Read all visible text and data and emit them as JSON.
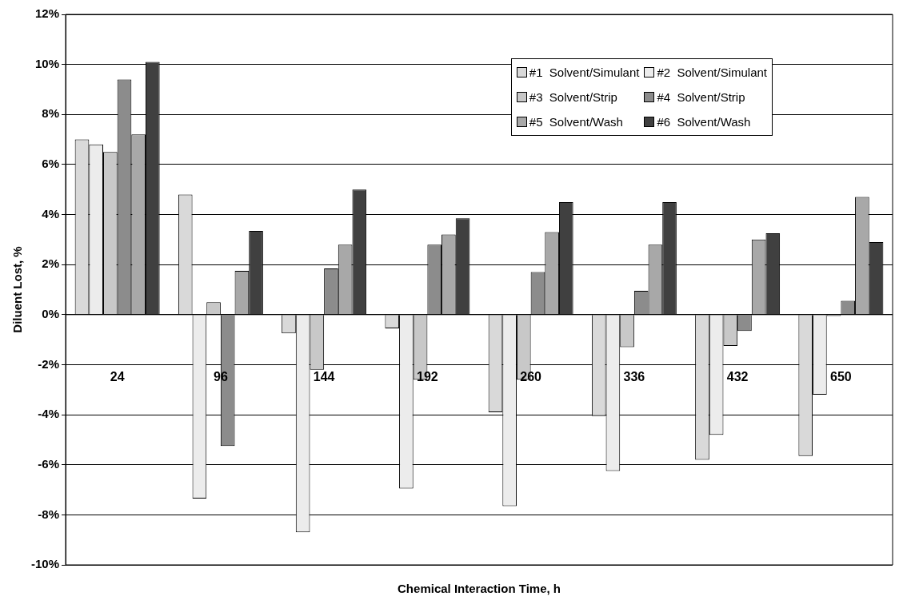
{
  "chart_data": {
    "type": "bar",
    "xlabel": "Chemical Interaction Time, h",
    "ylabel": "Diluent Lost, %",
    "categories": [
      "24",
      "96",
      "144",
      "192",
      "260",
      "336",
      "432",
      "650"
    ],
    "series": [
      {
        "name": "#1  Solvent/Simulant",
        "color": "#d9d9d9",
        "values": [
          7.0,
          4.8,
          -0.75,
          -0.55,
          -3.9,
          -4.05,
          -5.8,
          -5.65
        ]
      },
      {
        "name": "#2  Solvent/Simulant",
        "color": "#ececec",
        "values": [
          6.8,
          -7.35,
          -8.7,
          -6.95,
          -7.65,
          -6.25,
          -4.8,
          -3.2
        ]
      },
      {
        "name": "#3  Solvent/Strip",
        "color": "#c8c8c8",
        "values": [
          6.5,
          0.5,
          -2.2,
          -2.6,
          -2.6,
          -1.3,
          -1.25,
          -0.05
        ]
      },
      {
        "name": "#4  Solvent/Strip",
        "color": "#8c8c8c",
        "values": [
          9.4,
          -5.25,
          1.85,
          2.8,
          1.7,
          0.95,
          -0.65,
          0.55
        ]
      },
      {
        "name": "#5  Solvent/Wash",
        "color": "#a8a8a8",
        "values": [
          7.2,
          1.75,
          2.8,
          3.2,
          3.3,
          2.8,
          3.0,
          4.7
        ]
      },
      {
        "name": "#6  Solvent/Wash",
        "color": "#404040",
        "values": [
          10.1,
          3.35,
          5.0,
          3.85,
          4.5,
          4.5,
          3.25,
          2.9
        ]
      }
    ],
    "ylim": [
      -10,
      12
    ],
    "yticks": [
      {
        "value": -10,
        "label": "-10%"
      },
      {
        "value": -8,
        "label": "-8%"
      },
      {
        "value": -6,
        "label": "-6%"
      },
      {
        "value": -4,
        "label": "-4%"
      },
      {
        "value": -2,
        "label": "-2%"
      },
      {
        "value": 0,
        "label": "0%"
      },
      {
        "value": 2,
        "label": "2%"
      },
      {
        "value": 4,
        "label": "4%"
      },
      {
        "value": 6,
        "label": "6%"
      },
      {
        "value": 8,
        "label": "8%"
      },
      {
        "value": 10,
        "label": "10%"
      },
      {
        "value": 12,
        "label": "12%"
      }
    ],
    "grid": "y",
    "legend": "top right"
  }
}
